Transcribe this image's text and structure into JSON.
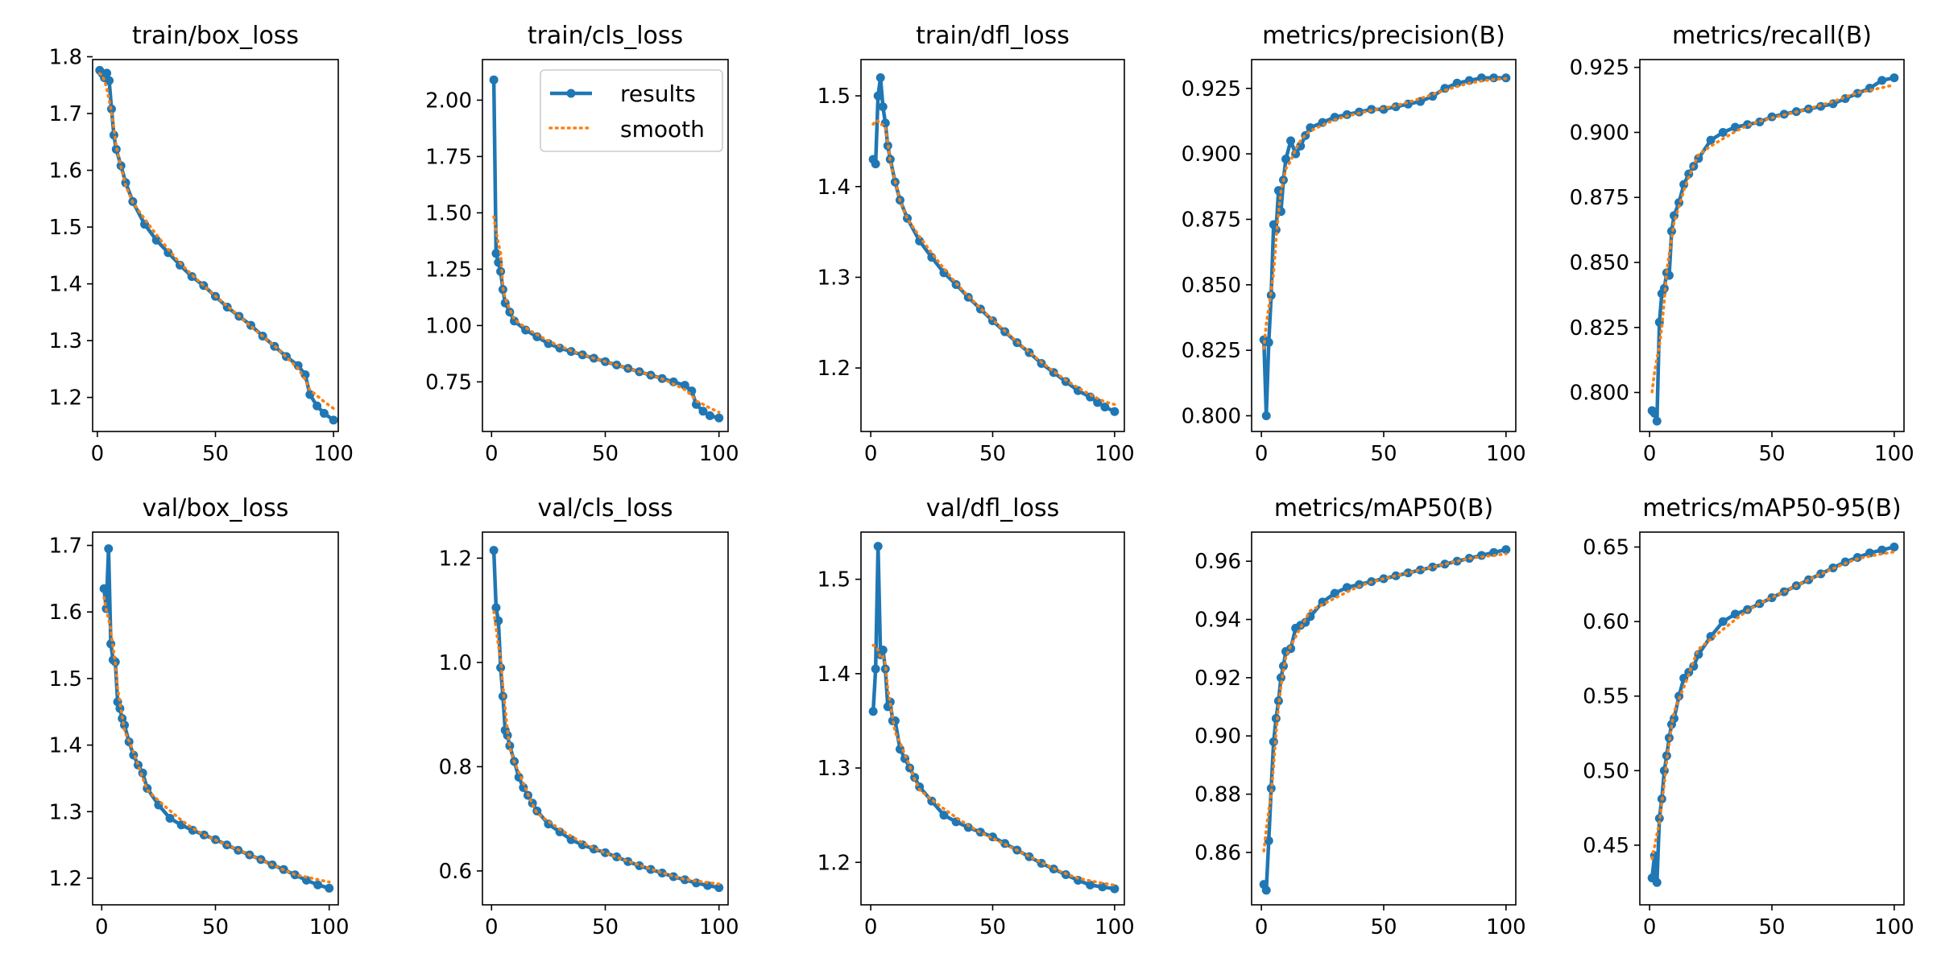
{
  "chart_data": [
    {
      "type": "line",
      "title": "train/box_loss",
      "xlim": [
        -2,
        102
      ],
      "ylim": [
        1.14,
        1.795
      ],
      "xticks": [
        0,
        50,
        100
      ],
      "yticks": [
        1.2,
        1.3,
        1.4,
        1.5,
        1.6,
        1.7,
        1.8
      ],
      "ydecimals": 1,
      "points": [
        [
          1,
          1.776
        ],
        [
          2,
          1.771
        ],
        [
          3,
          1.763
        ],
        [
          4,
          1.771
        ],
        [
          5,
          1.758
        ],
        [
          6,
          1.708
        ],
        [
          7,
          1.662
        ],
        [
          8,
          1.637
        ],
        [
          10,
          1.608
        ],
        [
          12,
          1.578
        ],
        [
          15,
          1.545
        ],
        [
          20,
          1.505
        ],
        [
          25,
          1.477
        ],
        [
          30,
          1.455
        ],
        [
          35,
          1.433
        ],
        [
          40,
          1.413
        ],
        [
          45,
          1.397
        ],
        [
          50,
          1.378
        ],
        [
          55,
          1.359
        ],
        [
          60,
          1.343
        ],
        [
          65,
          1.327
        ],
        [
          70,
          1.308
        ],
        [
          75,
          1.29
        ],
        [
          80,
          1.272
        ],
        [
          85,
          1.256
        ],
        [
          88,
          1.24
        ],
        [
          90,
          1.205
        ],
        [
          93,
          1.185
        ],
        [
          96,
          1.172
        ],
        [
          100,
          1.16
        ]
      ],
      "legend": null
    },
    {
      "type": "line",
      "title": "train/cls_loss",
      "xlim": [
        -4,
        104
      ],
      "ylim": [
        0.53,
        2.18
      ],
      "xticks": [
        0,
        50,
        100
      ],
      "yticks": [
        0.75,
        1.0,
        1.25,
        1.5,
        1.75,
        2.0
      ],
      "ydecimals": 2,
      "points": [
        [
          1,
          2.09
        ],
        [
          2,
          1.32
        ],
        [
          3,
          1.28
        ],
        [
          4,
          1.24
        ],
        [
          5,
          1.16
        ],
        [
          6,
          1.1
        ],
        [
          8,
          1.06
        ],
        [
          10,
          1.02
        ],
        [
          15,
          0.98
        ],
        [
          20,
          0.95
        ],
        [
          25,
          0.92
        ],
        [
          30,
          0.9
        ],
        [
          35,
          0.885
        ],
        [
          40,
          0.87
        ],
        [
          45,
          0.855
        ],
        [
          50,
          0.84
        ],
        [
          55,
          0.825
        ],
        [
          60,
          0.81
        ],
        [
          65,
          0.795
        ],
        [
          70,
          0.78
        ],
        [
          75,
          0.765
        ],
        [
          80,
          0.75
        ],
        [
          85,
          0.735
        ],
        [
          88,
          0.71
        ],
        [
          90,
          0.65
        ],
        [
          93,
          0.62
        ],
        [
          96,
          0.6
        ],
        [
          100,
          0.59
        ]
      ],
      "legend": {
        "results": "results",
        "smooth": "smooth"
      }
    },
    {
      "type": "line",
      "title": "train/dfl_loss",
      "xlim": [
        -4,
        104
      ],
      "ylim": [
        1.13,
        1.54
      ],
      "xticks": [
        0,
        50,
        100
      ],
      "yticks": [
        1.2,
        1.3,
        1.4,
        1.5
      ],
      "ydecimals": 1,
      "points": [
        [
          1,
          1.43
        ],
        [
          2,
          1.425
        ],
        [
          3,
          1.5
        ],
        [
          4,
          1.52
        ],
        [
          5,
          1.488
        ],
        [
          6,
          1.47
        ],
        [
          7,
          1.445
        ],
        [
          8,
          1.43
        ],
        [
          10,
          1.405
        ],
        [
          12,
          1.385
        ],
        [
          15,
          1.365
        ],
        [
          20,
          1.34
        ],
        [
          25,
          1.322
        ],
        [
          30,
          1.305
        ],
        [
          35,
          1.292
        ],
        [
          40,
          1.278
        ],
        [
          45,
          1.265
        ],
        [
          50,
          1.252
        ],
        [
          55,
          1.24
        ],
        [
          60,
          1.228
        ],
        [
          65,
          1.217
        ],
        [
          70,
          1.205
        ],
        [
          75,
          1.195
        ],
        [
          80,
          1.185
        ],
        [
          85,
          1.175
        ],
        [
          90,
          1.168
        ],
        [
          93,
          1.162
        ],
        [
          96,
          1.157
        ],
        [
          100,
          1.152
        ]
      ],
      "legend": null
    },
    {
      "type": "line",
      "title": "metrics/precision(B)",
      "xlim": [
        -4,
        104
      ],
      "ylim": [
        0.794,
        0.936
      ],
      "xticks": [
        0,
        50,
        100
      ],
      "yticks": [
        0.8,
        0.825,
        0.85,
        0.875,
        0.9,
        0.925
      ],
      "ydecimals": 3,
      "points": [
        [
          1,
          0.829
        ],
        [
          2,
          0.8
        ],
        [
          3,
          0.828
        ],
        [
          4,
          0.846
        ],
        [
          5,
          0.873
        ],
        [
          6,
          0.871
        ],
        [
          7,
          0.886
        ],
        [
          8,
          0.878
        ],
        [
          9,
          0.89
        ],
        [
          10,
          0.898
        ],
        [
          12,
          0.905
        ],
        [
          14,
          0.9
        ],
        [
          16,
          0.903
        ],
        [
          18,
          0.907
        ],
        [
          20,
          0.91
        ],
        [
          25,
          0.912
        ],
        [
          30,
          0.914
        ],
        [
          35,
          0.915
        ],
        [
          40,
          0.916
        ],
        [
          45,
          0.917
        ],
        [
          50,
          0.917
        ],
        [
          55,
          0.918
        ],
        [
          60,
          0.919
        ],
        [
          65,
          0.92
        ],
        [
          70,
          0.922
        ],
        [
          75,
          0.925
        ],
        [
          80,
          0.927
        ],
        [
          85,
          0.928
        ],
        [
          90,
          0.929
        ],
        [
          95,
          0.929
        ],
        [
          100,
          0.929
        ]
      ],
      "legend": null
    },
    {
      "type": "line",
      "title": "metrics/recall(B)",
      "xlim": [
        -4,
        104
      ],
      "ylim": [
        0.785,
        0.928
      ],
      "xticks": [
        0,
        50,
        100
      ],
      "yticks": [
        0.8,
        0.825,
        0.85,
        0.875,
        0.9,
        0.925
      ],
      "ydecimals": 3,
      "points": [
        [
          1,
          0.793
        ],
        [
          2,
          0.792
        ],
        [
          3,
          0.789
        ],
        [
          4,
          0.827
        ],
        [
          5,
          0.838
        ],
        [
          6,
          0.84
        ],
        [
          7,
          0.846
        ],
        [
          8,
          0.845
        ],
        [
          9,
          0.862
        ],
        [
          10,
          0.868
        ],
        [
          12,
          0.873
        ],
        [
          14,
          0.88
        ],
        [
          16,
          0.884
        ],
        [
          18,
          0.887
        ],
        [
          20,
          0.89
        ],
        [
          25,
          0.897
        ],
        [
          30,
          0.9
        ],
        [
          35,
          0.902
        ],
        [
          40,
          0.903
        ],
        [
          45,
          0.904
        ],
        [
          50,
          0.906
        ],
        [
          55,
          0.907
        ],
        [
          60,
          0.908
        ],
        [
          65,
          0.909
        ],
        [
          70,
          0.91
        ],
        [
          75,
          0.911
        ],
        [
          80,
          0.913
        ],
        [
          85,
          0.915
        ],
        [
          90,
          0.917
        ],
        [
          95,
          0.92
        ],
        [
          100,
          0.921
        ]
      ],
      "legend": null
    },
    {
      "type": "line",
      "title": "val/box_loss",
      "xlim": [
        -4,
        104
      ],
      "ylim": [
        1.16,
        1.72
      ],
      "xticks": [
        0,
        50,
        100
      ],
      "yticks": [
        1.2,
        1.3,
        1.4,
        1.5,
        1.6,
        1.7
      ],
      "ydecimals": 1,
      "points": [
        [
          1,
          1.635
        ],
        [
          2,
          1.605
        ],
        [
          3,
          1.695
        ],
        [
          4,
          1.552
        ],
        [
          5,
          1.528
        ],
        [
          6,
          1.525
        ],
        [
          7,
          1.465
        ],
        [
          8,
          1.455
        ],
        [
          9,
          1.44
        ],
        [
          10,
          1.43
        ],
        [
          12,
          1.405
        ],
        [
          14,
          1.385
        ],
        [
          16,
          1.37
        ],
        [
          18,
          1.358
        ],
        [
          20,
          1.335
        ],
        [
          25,
          1.31
        ],
        [
          30,
          1.29
        ],
        [
          35,
          1.28
        ],
        [
          40,
          1.272
        ],
        [
          45,
          1.265
        ],
        [
          50,
          1.258
        ],
        [
          55,
          1.25
        ],
        [
          60,
          1.242
        ],
        [
          65,
          1.235
        ],
        [
          70,
          1.228
        ],
        [
          75,
          1.22
        ],
        [
          80,
          1.213
        ],
        [
          85,
          1.205
        ],
        [
          90,
          1.197
        ],
        [
          95,
          1.19
        ],
        [
          100,
          1.185
        ]
      ],
      "legend": null
    },
    {
      "type": "line",
      "title": "val/cls_loss",
      "xlim": [
        -4,
        104
      ],
      "ylim": [
        0.535,
        1.25
      ],
      "xticks": [
        0,
        50,
        100
      ],
      "yticks": [
        0.6,
        0.8,
        1.0,
        1.2
      ],
      "ydecimals": 1,
      "points": [
        [
          1,
          1.215
        ],
        [
          2,
          1.105
        ],
        [
          3,
          1.08
        ],
        [
          4,
          0.99
        ],
        [
          5,
          0.935
        ],
        [
          6,
          0.87
        ],
        [
          7,
          0.86
        ],
        [
          8,
          0.84
        ],
        [
          10,
          0.81
        ],
        [
          12,
          0.78
        ],
        [
          14,
          0.76
        ],
        [
          16,
          0.745
        ],
        [
          18,
          0.73
        ],
        [
          20,
          0.715
        ],
        [
          25,
          0.69
        ],
        [
          30,
          0.675
        ],
        [
          35,
          0.66
        ],
        [
          40,
          0.65
        ],
        [
          45,
          0.642
        ],
        [
          50,
          0.635
        ],
        [
          55,
          0.627
        ],
        [
          60,
          0.618
        ],
        [
          65,
          0.61
        ],
        [
          70,
          0.603
        ],
        [
          75,
          0.596
        ],
        [
          80,
          0.589
        ],
        [
          85,
          0.583
        ],
        [
          90,
          0.577
        ],
        [
          95,
          0.572
        ],
        [
          100,
          0.568
        ]
      ],
      "legend": null
    },
    {
      "type": "line",
      "title": "val/dfl_loss",
      "xlim": [
        -4,
        104
      ],
      "ylim": [
        1.155,
        1.55
      ],
      "xticks": [
        0,
        50,
        100
      ],
      "yticks": [
        1.2,
        1.3,
        1.4,
        1.5
      ],
      "ydecimals": 1,
      "points": [
        [
          1,
          1.36
        ],
        [
          2,
          1.405
        ],
        [
          3,
          1.535
        ],
        [
          4,
          1.42
        ],
        [
          5,
          1.425
        ],
        [
          6,
          1.405
        ],
        [
          7,
          1.365
        ],
        [
          8,
          1.37
        ],
        [
          9,
          1.35
        ],
        [
          10,
          1.35
        ],
        [
          12,
          1.32
        ],
        [
          14,
          1.31
        ],
        [
          16,
          1.3
        ],
        [
          18,
          1.29
        ],
        [
          20,
          1.28
        ],
        [
          25,
          1.265
        ],
        [
          30,
          1.25
        ],
        [
          35,
          1.243
        ],
        [
          40,
          1.237
        ],
        [
          45,
          1.232
        ],
        [
          50,
          1.227
        ],
        [
          55,
          1.22
        ],
        [
          60,
          1.213
        ],
        [
          65,
          1.206
        ],
        [
          70,
          1.199
        ],
        [
          75,
          1.193
        ],
        [
          80,
          1.187
        ],
        [
          85,
          1.181
        ],
        [
          90,
          1.176
        ],
        [
          95,
          1.174
        ],
        [
          100,
          1.172
        ]
      ],
      "legend": null
    },
    {
      "type": "line",
      "title": "metrics/mAP50(B)",
      "xlim": [
        -4,
        104
      ],
      "ylim": [
        0.842,
        0.97
      ],
      "xticks": [
        0,
        50,
        100
      ],
      "yticks": [
        0.86,
        0.88,
        0.9,
        0.92,
        0.94,
        0.96
      ],
      "ydecimals": 2,
      "points": [
        [
          1,
          0.849
        ],
        [
          2,
          0.847
        ],
        [
          3,
          0.864
        ],
        [
          4,
          0.882
        ],
        [
          5,
          0.898
        ],
        [
          6,
          0.906
        ],
        [
          7,
          0.912
        ],
        [
          8,
          0.92
        ],
        [
          9,
          0.924
        ],
        [
          10,
          0.929
        ],
        [
          12,
          0.93
        ],
        [
          14,
          0.937
        ],
        [
          16,
          0.938
        ],
        [
          18,
          0.939
        ],
        [
          20,
          0.941
        ],
        [
          25,
          0.946
        ],
        [
          30,
          0.949
        ],
        [
          35,
          0.951
        ],
        [
          40,
          0.952
        ],
        [
          45,
          0.953
        ],
        [
          50,
          0.954
        ],
        [
          55,
          0.955
        ],
        [
          60,
          0.956
        ],
        [
          65,
          0.957
        ],
        [
          70,
          0.958
        ],
        [
          75,
          0.959
        ],
        [
          80,
          0.96
        ],
        [
          85,
          0.961
        ],
        [
          90,
          0.962
        ],
        [
          95,
          0.963
        ],
        [
          100,
          0.964
        ]
      ],
      "legend": null
    },
    {
      "type": "line",
      "title": "metrics/mAP50-95(B)",
      "xlim": [
        -4,
        104
      ],
      "ylim": [
        0.41,
        0.66
      ],
      "xticks": [
        0,
        50,
        100
      ],
      "yticks": [
        0.45,
        0.5,
        0.55,
        0.6,
        0.65
      ],
      "ydecimals": 2,
      "points": [
        [
          1,
          0.428
        ],
        [
          2,
          0.443
        ],
        [
          3,
          0.425
        ],
        [
          4,
          0.468
        ],
        [
          5,
          0.481
        ],
        [
          6,
          0.5
        ],
        [
          7,
          0.51
        ],
        [
          8,
          0.522
        ],
        [
          9,
          0.531
        ],
        [
          10,
          0.535
        ],
        [
          12,
          0.55
        ],
        [
          14,
          0.562
        ],
        [
          16,
          0.566
        ],
        [
          18,
          0.57
        ],
        [
          20,
          0.578
        ],
        [
          25,
          0.59
        ],
        [
          30,
          0.6
        ],
        [
          35,
          0.605
        ],
        [
          40,
          0.608
        ],
        [
          45,
          0.612
        ],
        [
          50,
          0.616
        ],
        [
          55,
          0.62
        ],
        [
          60,
          0.624
        ],
        [
          65,
          0.628
        ],
        [
          70,
          0.632
        ],
        [
          75,
          0.636
        ],
        [
          80,
          0.64
        ],
        [
          85,
          0.643
        ],
        [
          90,
          0.646
        ],
        [
          95,
          0.648
        ],
        [
          100,
          0.65
        ]
      ],
      "legend": null
    }
  ],
  "colors": {
    "results": "#1f77b4",
    "smooth": "#ff7f0e"
  }
}
